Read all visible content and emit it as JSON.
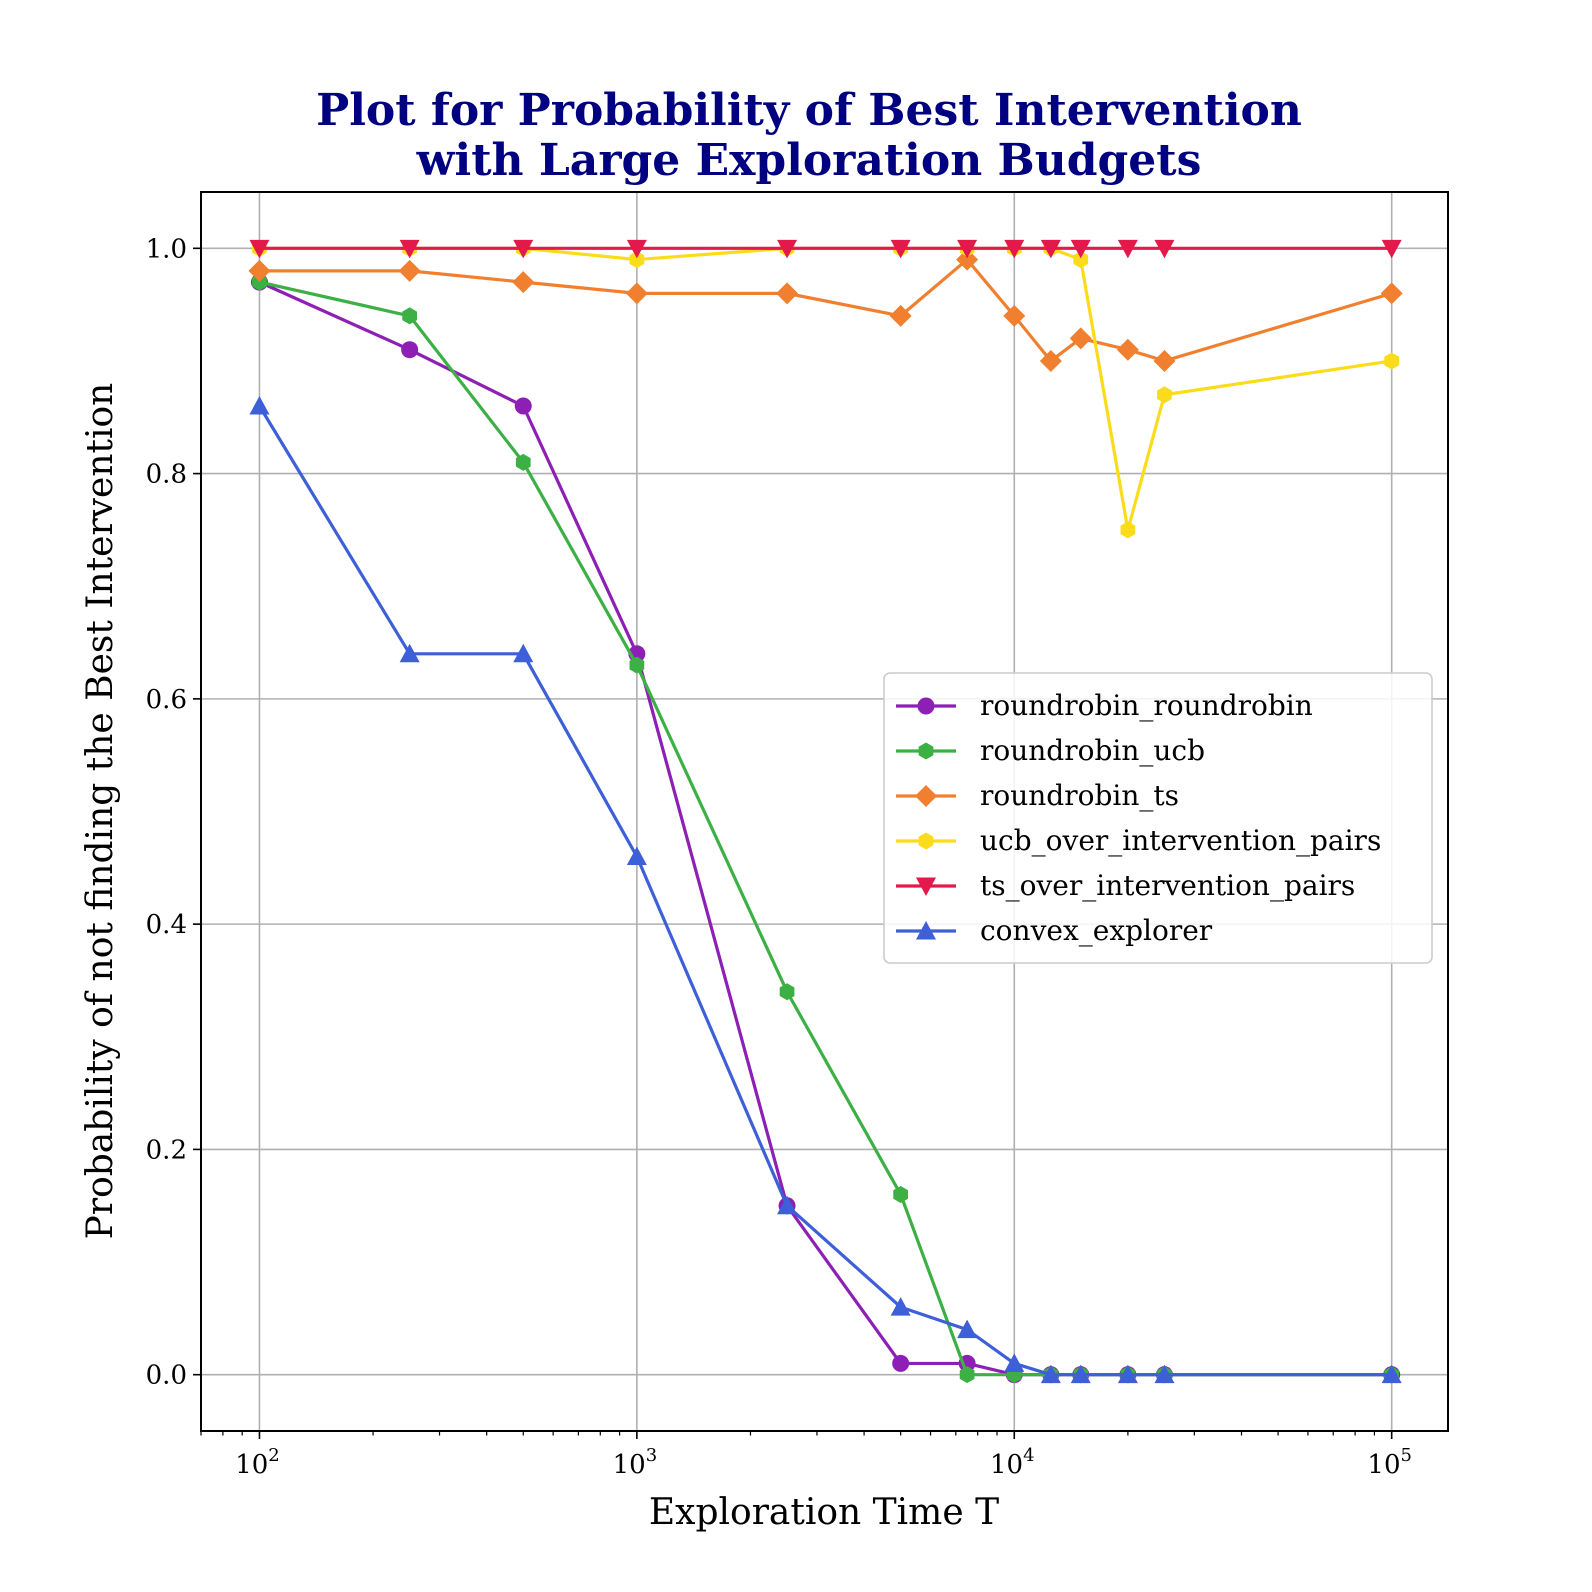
{
  "chart_data": {
    "type": "line",
    "title": [
      "Plot for Probability of Best Intervention",
      "with Large Exploration Budgets"
    ],
    "xlabel": "Exploration Time T",
    "ylabel": "Probability of not finding the Best Intervention",
    "xscale": "log",
    "xlim": [
      70,
      141000
    ],
    "ylim": [
      -0.05,
      1.05
    ],
    "xticks": [
      {
        "value": 100,
        "base": "10",
        "exp": "2"
      },
      {
        "value": 1000,
        "base": "10",
        "exp": "3"
      },
      {
        "value": 10000,
        "base": "10",
        "exp": "4"
      },
      {
        "value": 100000,
        "base": "10",
        "exp": "5"
      }
    ],
    "yticks": [
      "0.0",
      "0.2",
      "0.4",
      "0.6",
      "0.8",
      "1.0"
    ],
    "grid": true,
    "legend_position": "center-right",
    "x": [
      100,
      250,
      500,
      1000,
      2500,
      5000,
      7500,
      10000,
      12500,
      15000,
      20000,
      25000,
      100000
    ],
    "series": [
      {
        "name": "roundrobin_roundrobin",
        "color": "#8e1fb5",
        "marker": "circle",
        "values": [
          0.97,
          0.91,
          0.86,
          0.64,
          0.15,
          0.01,
          0.01,
          0.0,
          0.0,
          0.0,
          0.0,
          0.0,
          0.0
        ]
      },
      {
        "name": "roundrobin_ucb",
        "color": "#3cb044",
        "marker": "hexagon",
        "values": [
          0.97,
          0.94,
          0.81,
          0.63,
          0.34,
          0.16,
          0.0,
          0.0,
          0.0,
          0.0,
          0.0,
          0.0,
          0.0
        ]
      },
      {
        "name": "roundrobin_ts",
        "color": "#f08030",
        "marker": "diamond",
        "values": [
          0.98,
          0.98,
          0.97,
          0.96,
          0.96,
          0.94,
          0.99,
          0.94,
          0.9,
          0.92,
          0.91,
          0.9,
          0.96
        ]
      },
      {
        "name": "ucb_over_intervention_pairs",
        "color": "#fbdc1a",
        "marker": "hexagon",
        "values": [
          1.0,
          1.0,
          1.0,
          0.99,
          1.0,
          1.0,
          1.0,
          1.0,
          1.0,
          0.99,
          0.75,
          0.87,
          0.9
        ]
      },
      {
        "name": "ts_over_intervention_pairs",
        "color": "#e3194b",
        "marker": "triangle-down",
        "values": [
          1.0,
          1.0,
          1.0,
          1.0,
          1.0,
          1.0,
          1.0,
          1.0,
          1.0,
          1.0,
          1.0,
          1.0,
          1.0
        ]
      },
      {
        "name": "convex_explorer",
        "color": "#3d5fd8",
        "marker": "triangle-up",
        "values": [
          0.86,
          0.64,
          0.64,
          0.46,
          0.15,
          0.06,
          0.04,
          0.01,
          0.0,
          0.0,
          0.0,
          0.0,
          0.0
        ]
      }
    ]
  }
}
